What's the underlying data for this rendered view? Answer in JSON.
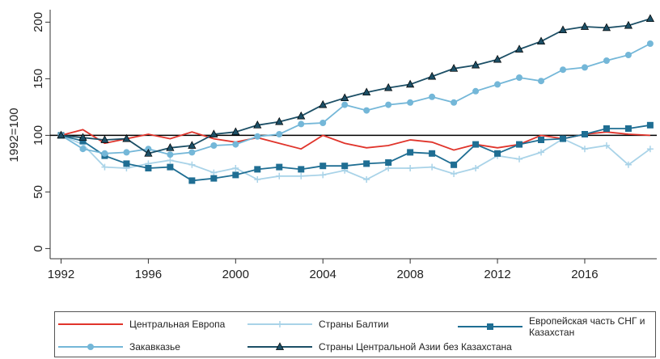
{
  "chart_data": {
    "type": "line",
    "ylabel": "1992=100",
    "x": [
      1992,
      1993,
      1994,
      1995,
      1996,
      1997,
      1998,
      1999,
      2000,
      2001,
      2002,
      2003,
      2004,
      2005,
      2006,
      2007,
      2008,
      2009,
      2010,
      2011,
      2012,
      2013,
      2014,
      2015,
      2016,
      2017,
      2018,
      2019
    ],
    "xlim": [
      1991.5,
      2019.3
    ],
    "xticks": [
      1992,
      1996,
      2000,
      2004,
      2008,
      2012,
      2016
    ],
    "ylim": [
      -9,
      211
    ],
    "yticks": [
      0,
      50,
      100,
      150,
      200
    ],
    "reference_line": 100,
    "legend": "bottom",
    "series": [
      {
        "name": "Центральная Европа",
        "color": "#e0342b",
        "values": [
          100,
          105,
          93,
          97,
          101,
          97,
          103,
          97,
          94,
          98,
          93,
          88,
          100,
          93,
          89,
          91,
          96,
          94,
          87,
          92,
          89,
          92,
          100,
          97,
          101,
          103,
          101,
          100
        ]
      },
      {
        "name": "Страны Балтии",
        "color": "#a9d3e8",
        "marker": "plus",
        "values": [
          100,
          92,
          72,
          71,
          75,
          78,
          74,
          67,
          71,
          61,
          64,
          64,
          65,
          69,
          61,
          71,
          71,
          72,
          66,
          71,
          82,
          79,
          85,
          97,
          88,
          91,
          74,
          88
        ]
      },
      {
        "name": "Европейская часть СНГ и Казахстан",
        "color": "#1f6e93",
        "marker": "square",
        "values": [
          100,
          95,
          82,
          75,
          71,
          72,
          60,
          62,
          65,
          70,
          72,
          70,
          73,
          73,
          75,
          76,
          85,
          84,
          74,
          92,
          84,
          92,
          96,
          97,
          101,
          106,
          106,
          109
        ]
      },
      {
        "name": "Закавказье",
        "color": "#74b7d8",
        "marker": "circle",
        "values": [
          100,
          88,
          84,
          85,
          88,
          83,
          85,
          91,
          92,
          99,
          101,
          110,
          111,
          127,
          122,
          127,
          129,
          134,
          129,
          139,
          145,
          151,
          148,
          158,
          160,
          166,
          171,
          181
        ]
      },
      {
        "name": "Страны Центральной Азии без Казахстана",
        "color": "#1c4f66",
        "marker": "triangle",
        "values": [
          100,
          98,
          96,
          97,
          84,
          89,
          91,
          101,
          103,
          109,
          112,
          117,
          127,
          133,
          138,
          142,
          145,
          152,
          159,
          162,
          167,
          176,
          183,
          193,
          196,
          195,
          197,
          203
        ]
      }
    ]
  }
}
